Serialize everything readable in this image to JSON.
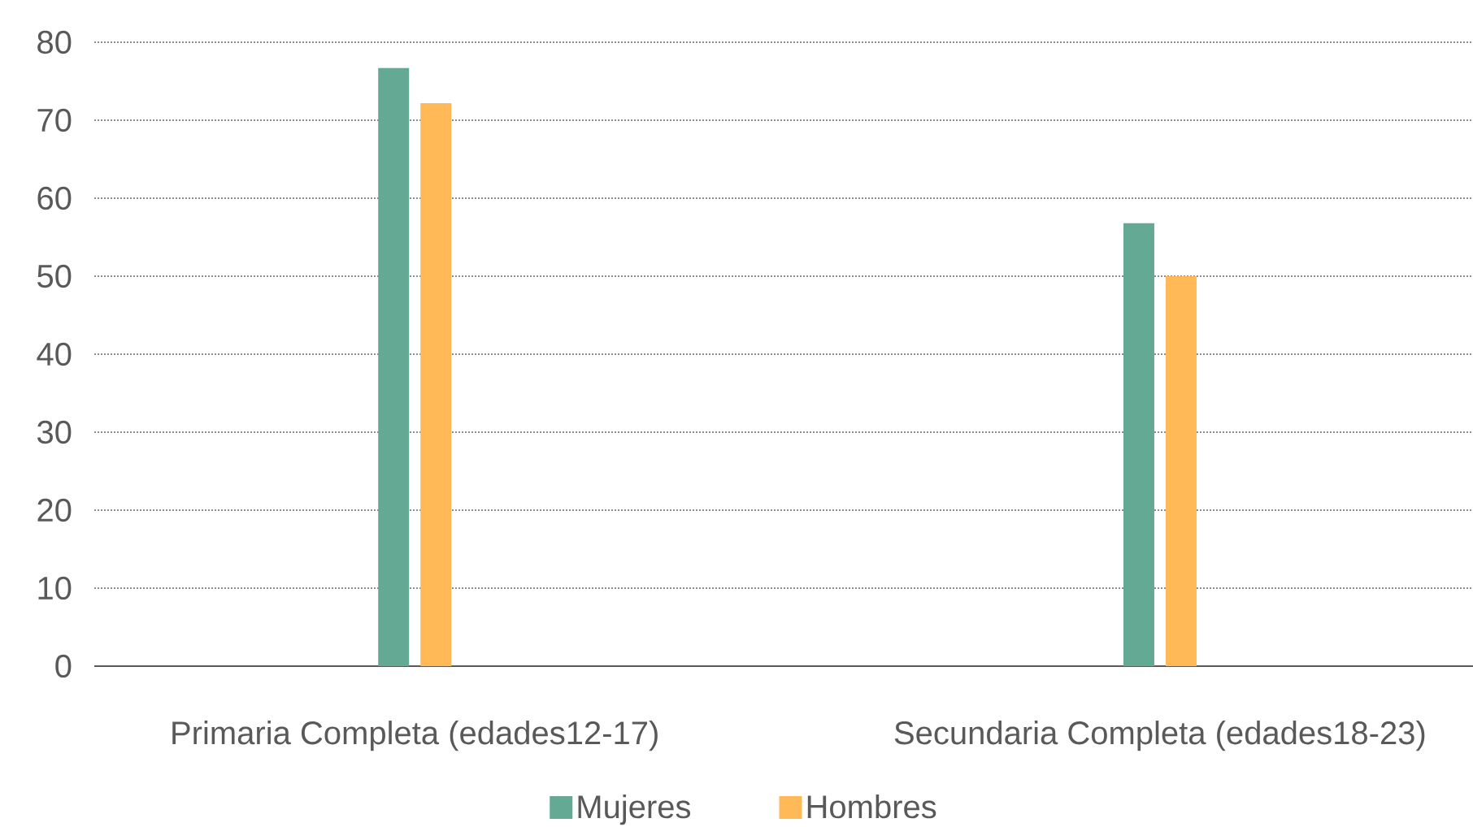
{
  "chart_data": {
    "type": "bar",
    "categories": [
      "Primaria Completa (edades12-17)",
      "Secundaria Completa (edades18-23)"
    ],
    "series": [
      {
        "name": "Mujeres",
        "color": "#63a993",
        "values": [
          76.7,
          56.8
        ]
      },
      {
        "name": "Hombres",
        "color": "#ffb957",
        "values": [
          72.2,
          50.0
        ]
      }
    ],
    "ylim": [
      0,
      80
    ],
    "yticks": [
      0,
      10,
      20,
      30,
      40,
      50,
      60,
      70,
      80
    ],
    "grid": "y",
    "legend": "bottom"
  }
}
